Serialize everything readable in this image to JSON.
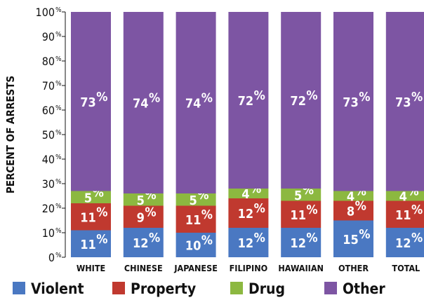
{
  "chart_data": {
    "type": "bar",
    "stacked": true,
    "ylabel": "PERCENT OF ARRESTS",
    "xlabel": "",
    "ylim": [
      0,
      100
    ],
    "yticks": [
      0,
      10,
      20,
      30,
      40,
      50,
      60,
      70,
      80,
      90,
      100
    ],
    "tick_suffix": "%",
    "categories": [
      "WHITE",
      "CHINESE",
      "JAPANESE",
      "FILIPINO",
      "HAWAIIAN",
      "OTHER",
      "TOTAL"
    ],
    "series": [
      {
        "name": "Violent",
        "color": "#4a78c2",
        "values": [
          11,
          12,
          10,
          12,
          12,
          15,
          12
        ]
      },
      {
        "name": "Property",
        "color": "#c0392f",
        "values": [
          11,
          9,
          11,
          12,
          11,
          8,
          11
        ]
      },
      {
        "name": "Drug",
        "color": "#8cb840",
        "values": [
          5,
          5,
          5,
          4,
          5,
          4,
          4
        ]
      },
      {
        "name": "Other",
        "color": "#7d55a3",
        "values": [
          73,
          74,
          74,
          72,
          72,
          73,
          73
        ]
      }
    ],
    "legend_position": "bottom",
    "grid": false
  }
}
